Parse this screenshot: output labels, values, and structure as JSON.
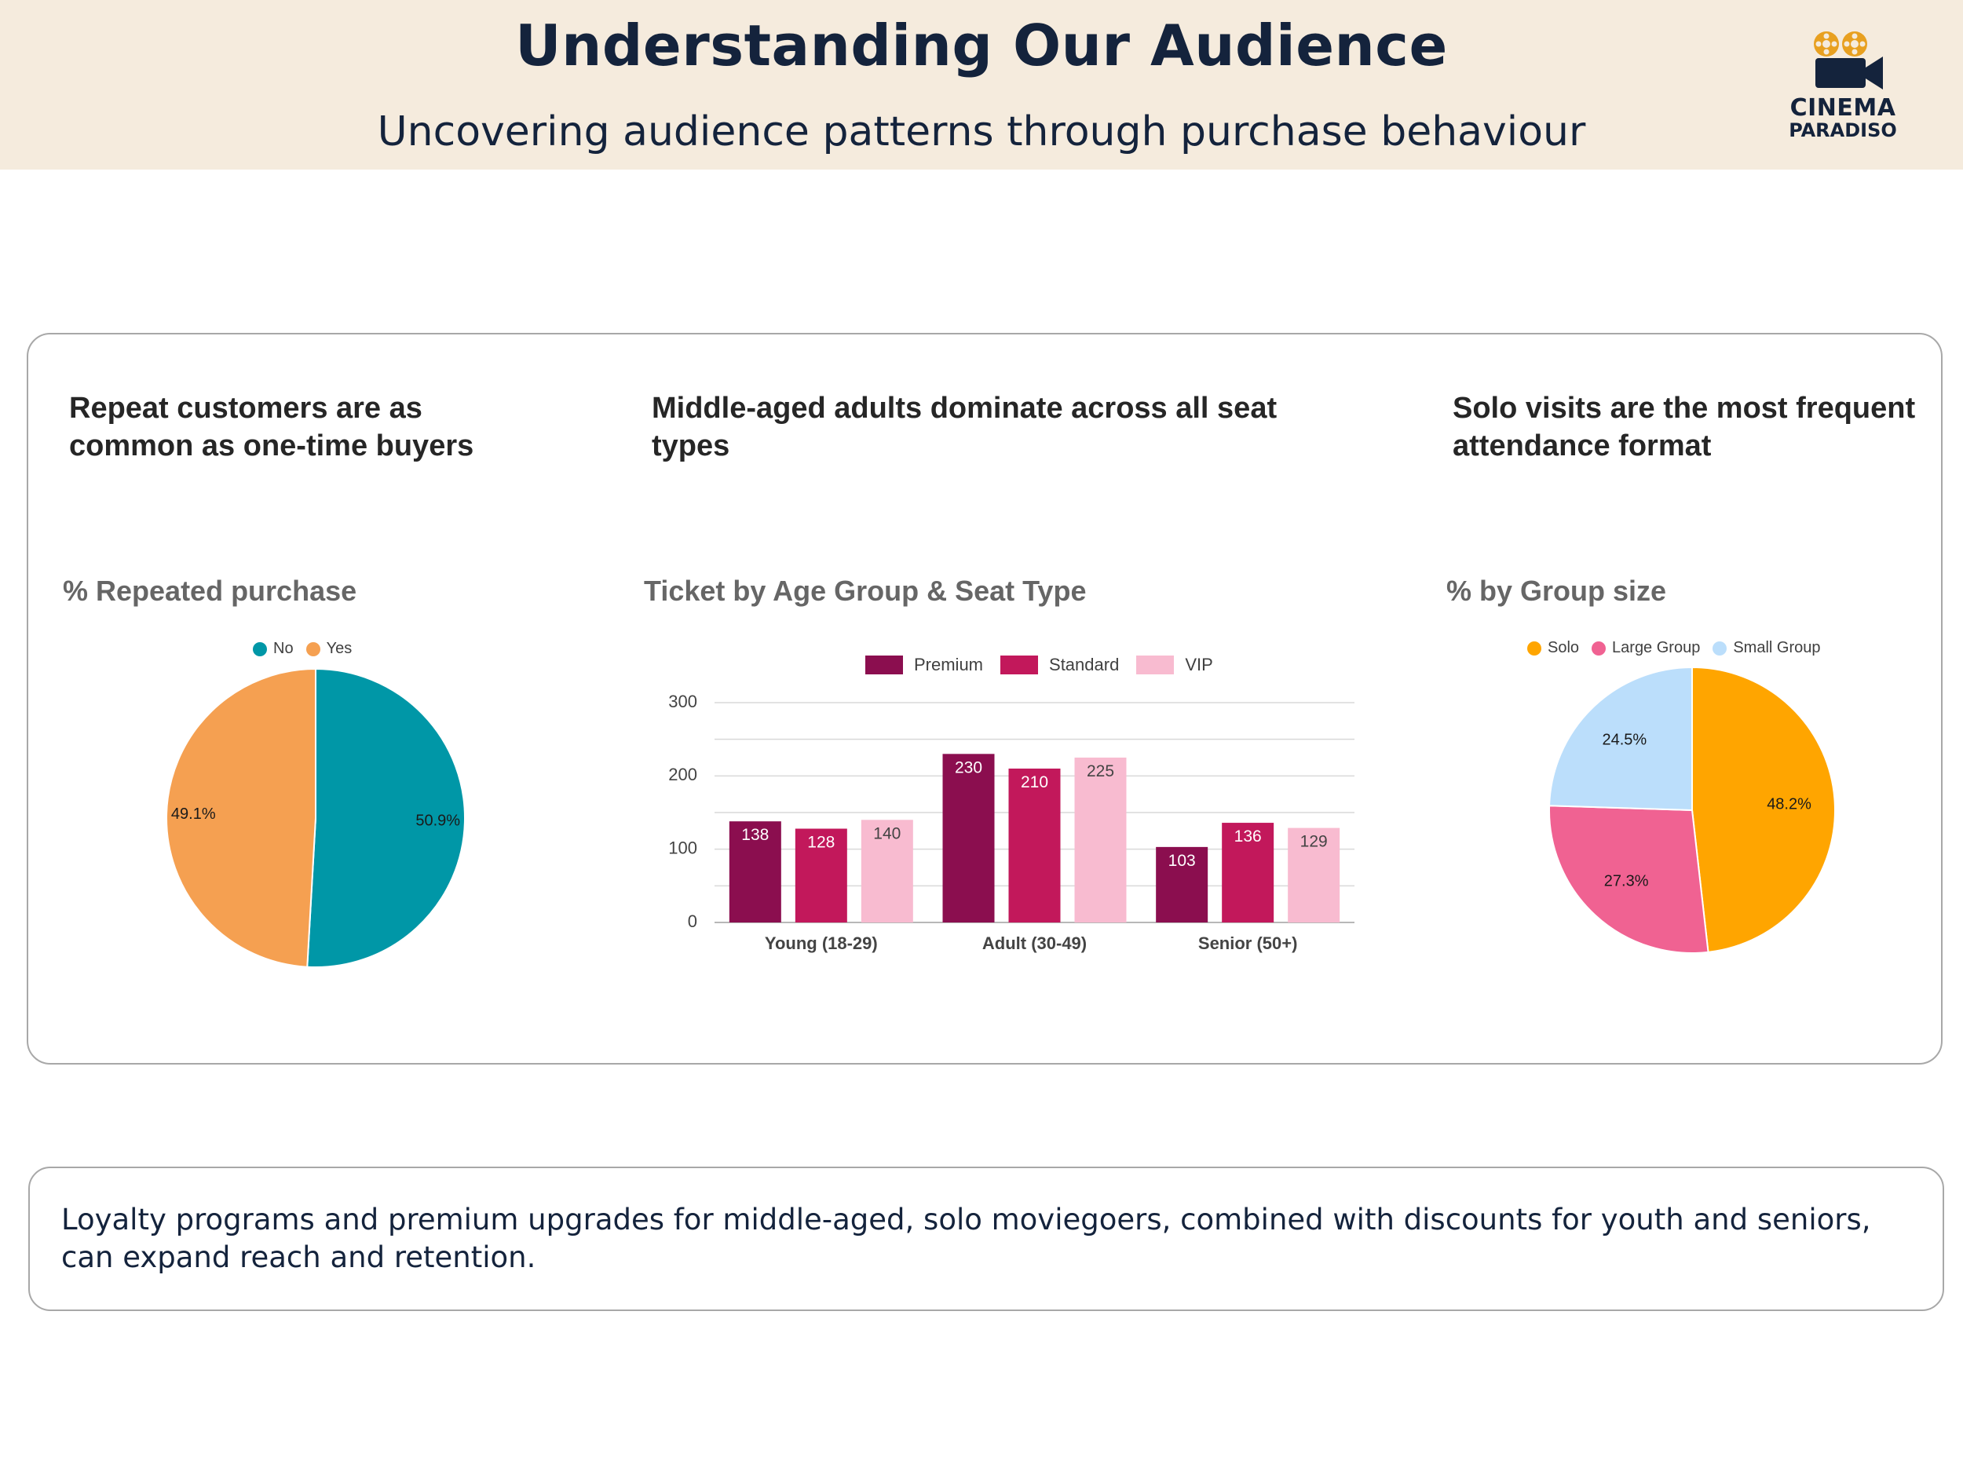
{
  "header": {
    "title": "Understanding Our Audience",
    "subtitle": "Uncovering audience patterns through purchase behaviour",
    "logo": {
      "line1": "CINEMA",
      "line2": "PARADISO",
      "icon": "film-camera-icon",
      "icon_color": "#e8a020",
      "text_color": "#14233c"
    }
  },
  "panels": {
    "repeat": {
      "headline": "Repeat customers are as common as one-time buyers"
    },
    "age": {
      "headline": "Middle-aged adults dominate across all seat types"
    },
    "group": {
      "headline": "Solo visits are the most frequent attendance format"
    }
  },
  "chart_data": [
    {
      "type": "pie",
      "title": "% Repeated purchase",
      "legend": "top",
      "labels": [
        "No",
        "Yes"
      ],
      "values": [
        50.9,
        49.1
      ],
      "value_labels": [
        "50.9%",
        "49.1%"
      ],
      "colors": [
        "#0097a7",
        "#f5a051"
      ]
    },
    {
      "type": "bar",
      "title": "Ticket by Age Group & Seat Type",
      "legend": "top",
      "categories": [
        "Young (18-29)",
        "Adult (30-49)",
        "Senior (50+)"
      ],
      "series": [
        {
          "name": "Premium",
          "values": [
            138,
            230,
            103
          ],
          "color": "#8b0e4f"
        },
        {
          "name": "Standard",
          "values": [
            128,
            210,
            136
          ],
          "color": "#c2185b"
        },
        {
          "name": "VIP",
          "values": [
            140,
            225,
            129
          ],
          "color": "#f8bbd0"
        }
      ],
      "ylim": [
        0,
        300
      ],
      "yticks": [
        0,
        100,
        200,
        300
      ],
      "grid": true
    },
    {
      "type": "pie",
      "title": "% by Group size",
      "legend": "top",
      "labels": [
        "Solo",
        "Large Group",
        "Small Group"
      ],
      "values": [
        48.2,
        27.3,
        24.5
      ],
      "value_labels": [
        "48.2%",
        "27.3%",
        "24.5%"
      ],
      "colors": [
        "#ffa500",
        "#f06292",
        "#bbdefb"
      ]
    }
  ],
  "insight": {
    "text": "Loyalty programs and premium upgrades for middle-aged, solo moviegoers, combined with discounts for youth and seniors, can expand reach and retention."
  }
}
